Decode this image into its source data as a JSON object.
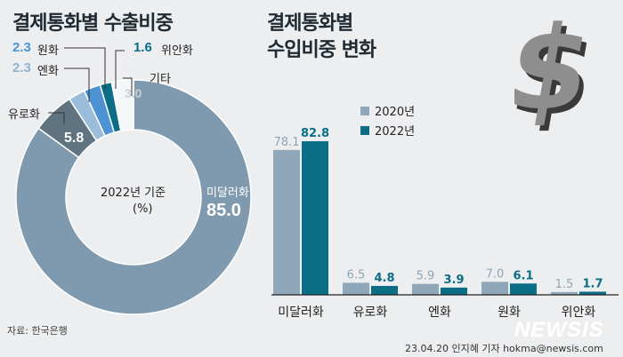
{
  "colors": {
    "bg": "#eceef0",
    "slate": "#7f9aae",
    "dark_slate": "#5f7380",
    "light_blue": "#9bbdd9",
    "mid_blue": "#4d93d3",
    "teal": "#0c6d86",
    "other": "#f4f7f8",
    "gray_2020": "#8fa7b8"
  },
  "icons": [
    "dollar-sign-icon"
  ],
  "left": {
    "title": "결제통화별 수출비중",
    "center_year": "2022년 기준",
    "center_unit": "(%)",
    "source": "자료: 한국은행"
  },
  "right": {
    "title_line1": "결제통화별",
    "title_line2": "수입비중 변화"
  },
  "footer": {
    "credit": "23.04.20 인지혜 기자 hokma@newsis.com",
    "logo": "NEWSIS"
  },
  "chart_data": [
    {
      "type": "pie",
      "title": "결제통화별 수출비중",
      "subtitle": "2022년 기준",
      "unit": "(%)",
      "slices": [
        {
          "label": "미달러화",
          "value": 85.0,
          "value_text": "85.0",
          "color": "#7f9aae"
        },
        {
          "label": "유로화",
          "value": 5.8,
          "value_text": "5.8",
          "color": "#5f7380"
        },
        {
          "label": "엔화",
          "value": 2.3,
          "value_text": "2.3",
          "color": "#9bbdd9"
        },
        {
          "label": "원화",
          "value": 2.3,
          "value_text": "2.3",
          "color": "#4d93d3"
        },
        {
          "label": "위안화",
          "value": 1.6,
          "value_text": "1.6",
          "color": "#0c6d86"
        },
        {
          "label": "기타",
          "value": 3.0,
          "value_text": "3.0",
          "color": "#f4f7f8"
        }
      ]
    },
    {
      "type": "bar",
      "title": "결제통화별 수입비중 변화",
      "categories": [
        "미달러화",
        "유로화",
        "엔화",
        "원화",
        "위안화"
      ],
      "series": [
        {
          "name": "2020년",
          "values": [
            78.1,
            6.5,
            5.9,
            7.0,
            1.5
          ],
          "labels": [
            "78.1",
            "6.5",
            "5.9",
            "7.0",
            "1.5"
          ],
          "color": "#8fa7b8"
        },
        {
          "name": "2022년",
          "values": [
            82.8,
            4.8,
            3.9,
            6.1,
            1.7
          ],
          "labels": [
            "82.8",
            "4.8",
            "3.9",
            "6.1",
            "1.7"
          ],
          "color": "#0c6d86"
        }
      ],
      "ylim": [
        0,
        90
      ],
      "legend": "top-right"
    }
  ]
}
